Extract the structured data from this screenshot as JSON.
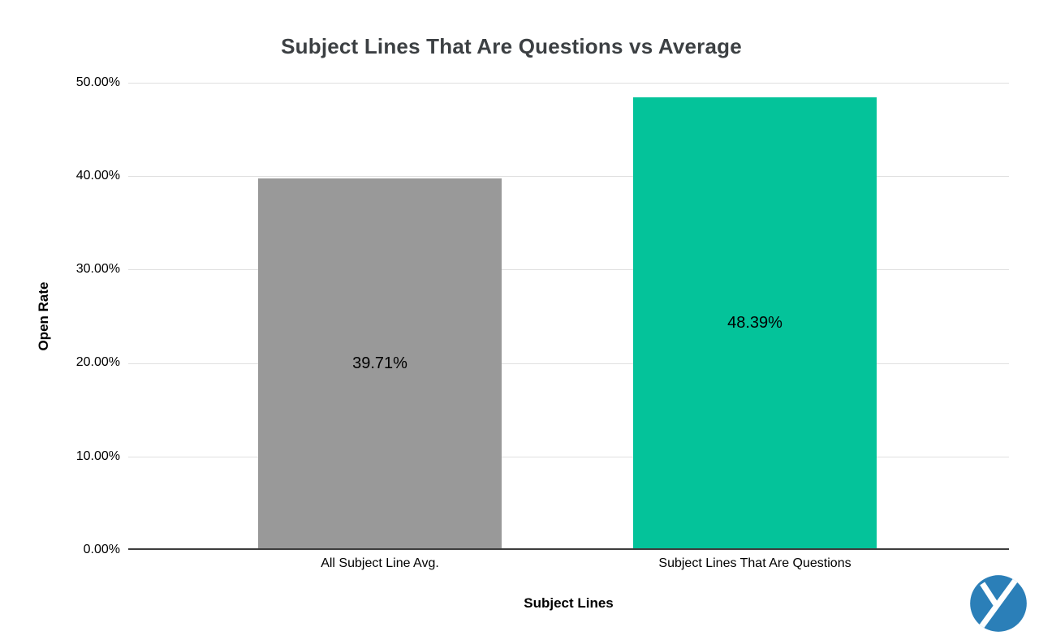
{
  "chart_data": {
    "type": "bar",
    "title": "Subject Lines That Are Questions vs Average",
    "xlabel": "Subject Lines",
    "ylabel": "Open Rate",
    "categories": [
      "All Subject Line Avg.",
      "Subject Lines That Are Questions"
    ],
    "values": [
      39.71,
      48.39
    ],
    "value_labels": [
      "39.71%",
      "48.39%"
    ],
    "bar_colors": [
      "#999999",
      "#04c39a"
    ],
    "ylim": [
      0,
      50
    ],
    "yticks": [
      "0.00%",
      "10.00%",
      "20.00%",
      "30.00%",
      "40.00%",
      "50.00%"
    ],
    "grid": true,
    "legend": "none",
    "gridline_color": "#e0e0e0",
    "axis_line_color": "#3d3d3d"
  },
  "branding": {
    "logo_name": "y-circle-logo",
    "logo_color": "#2b7fb8"
  }
}
